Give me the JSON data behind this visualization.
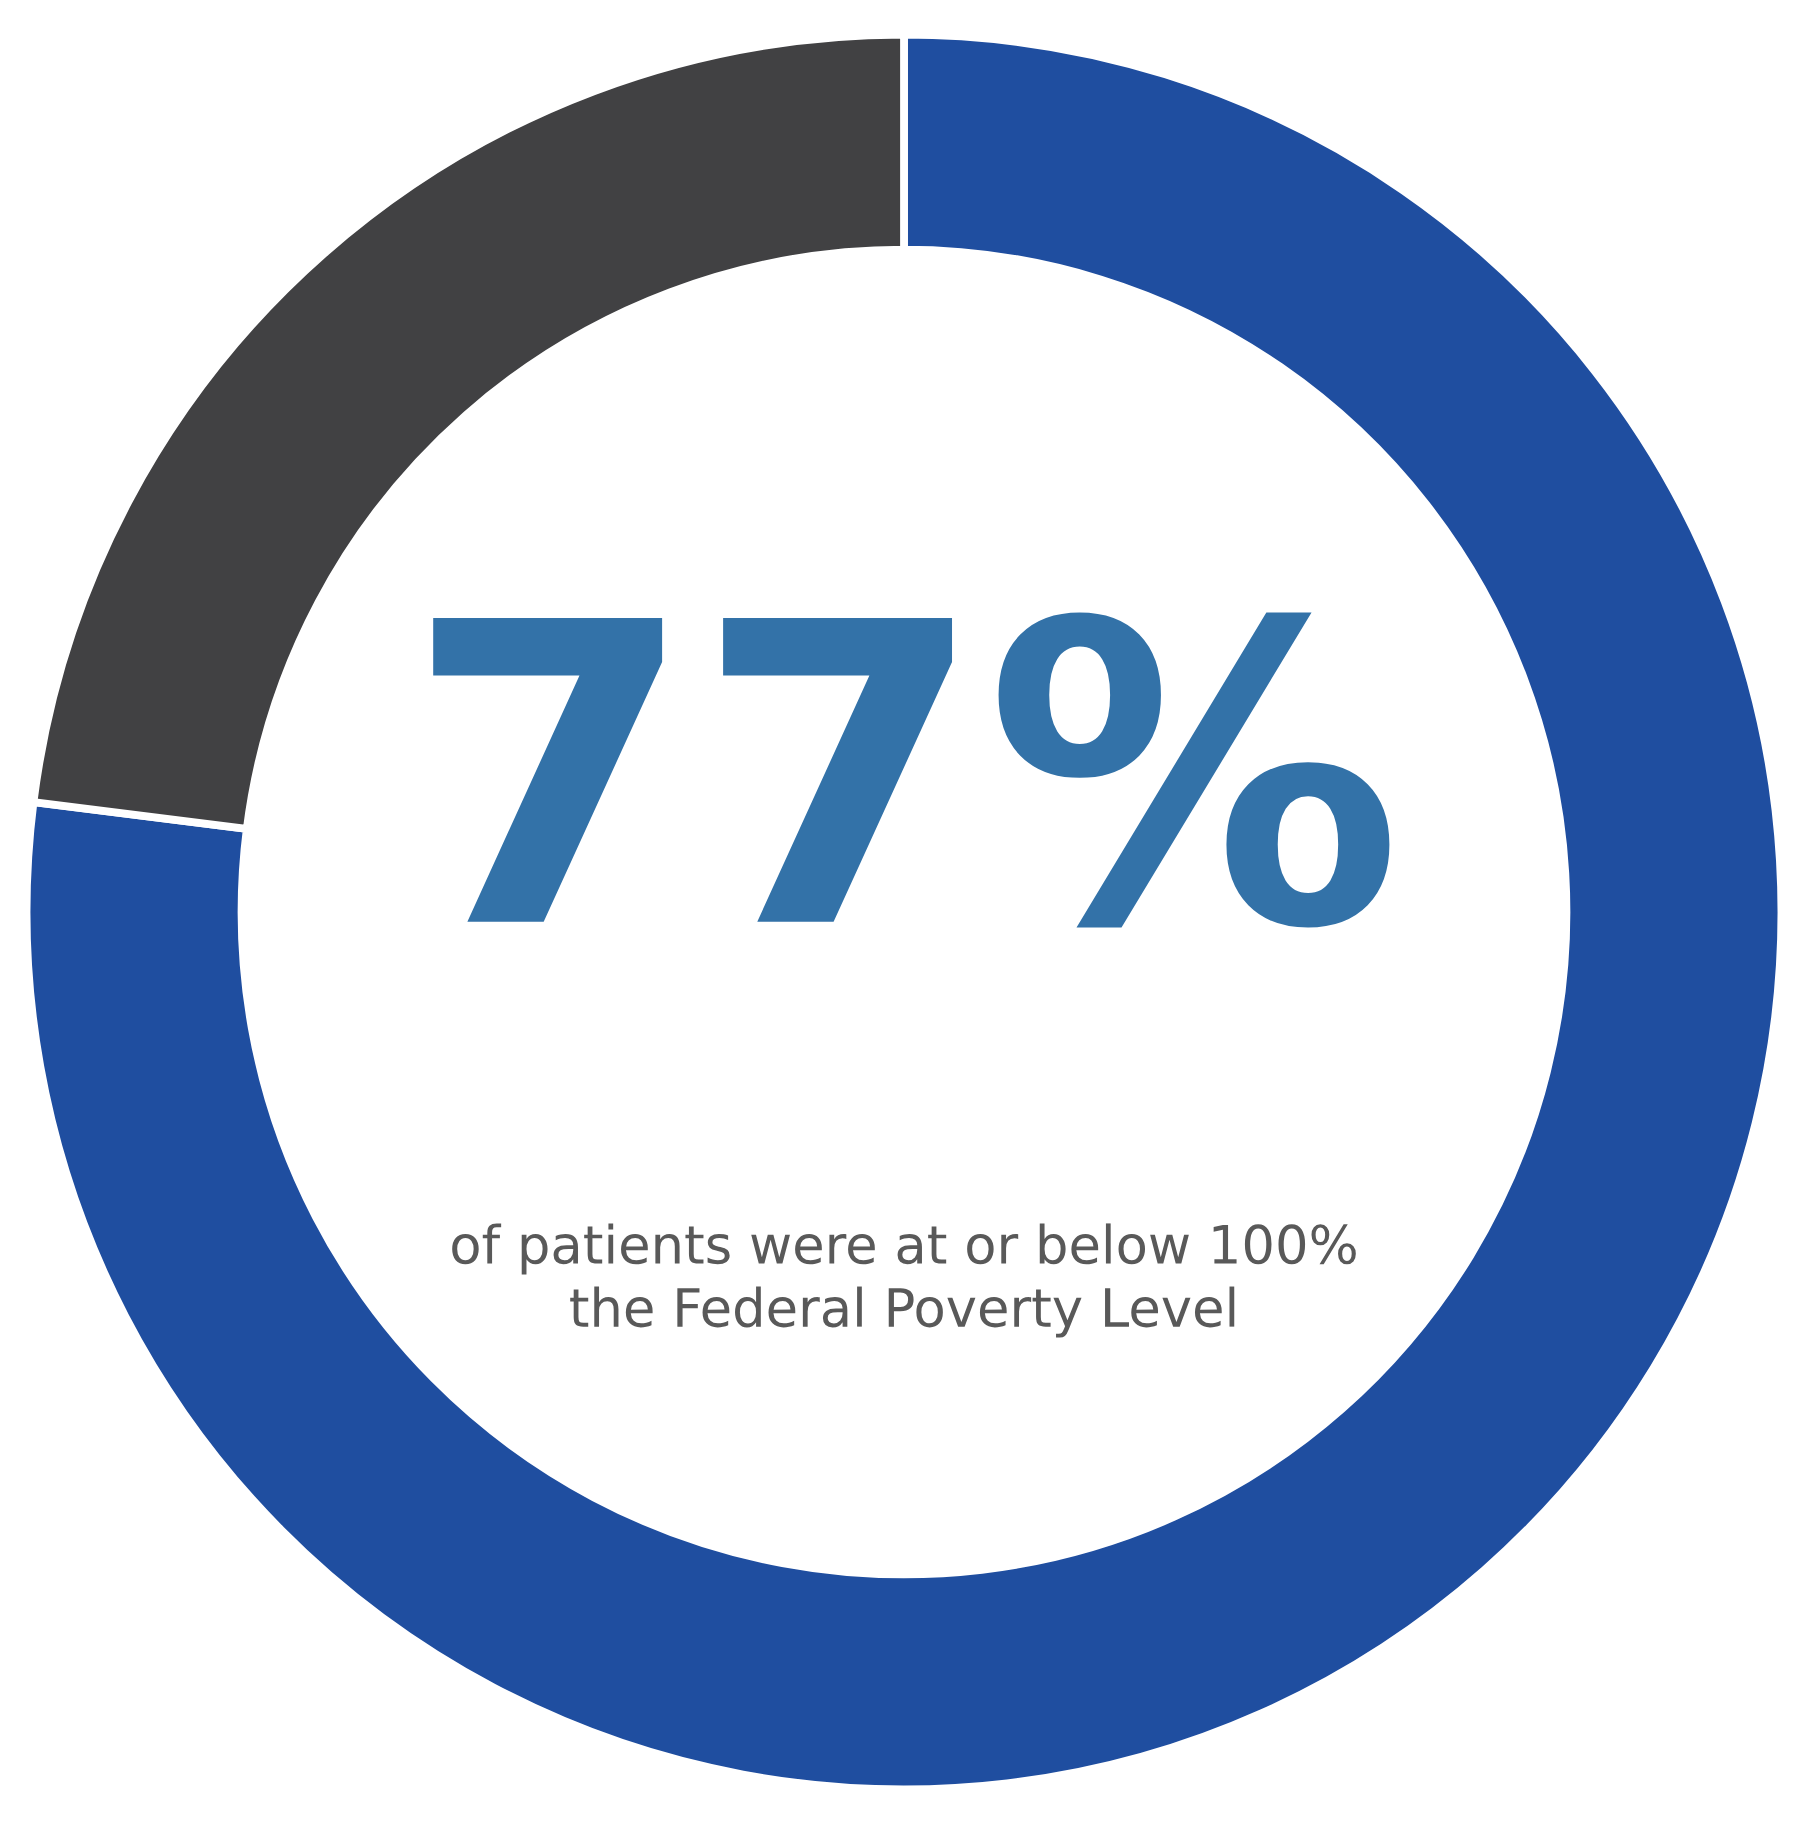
{
  "chart_data": {
    "type": "donut",
    "categories": [
      null,
      null
    ],
    "values": [
      77,
      23
    ],
    "colors": [
      "#1f4ea0",
      "#414143"
    ],
    "annotations": [
      "77%",
      "of patients were at or below 100%\nthe Federal Poverty Level"
    ]
  }
}
